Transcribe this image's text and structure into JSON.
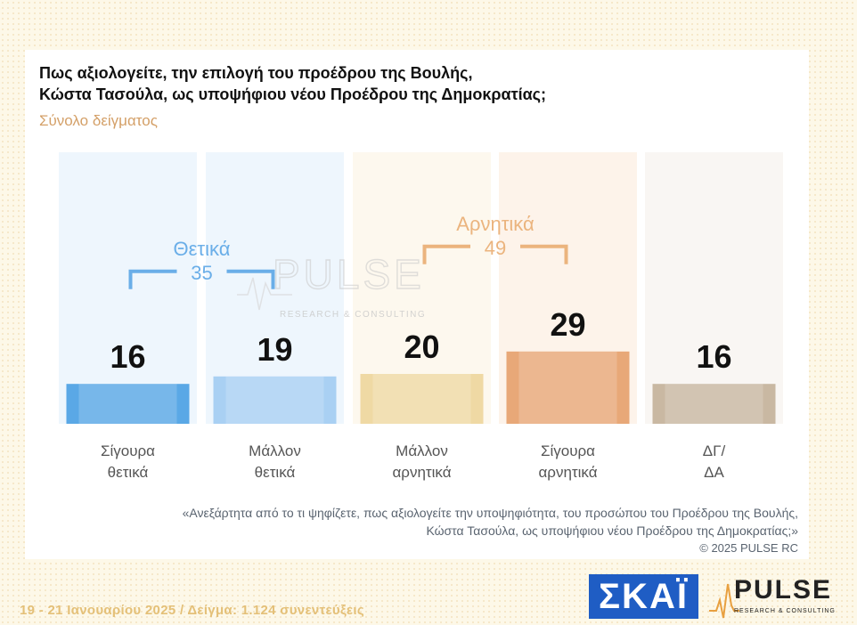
{
  "question": {
    "line1": "Πως αξιολογείτε, την επιλογή του προέδρου της Βουλής,",
    "line2": "Κώστα Τασούλα, ως υποψήφιου νέου Προέδρου της Δημοκρατίας;"
  },
  "subtitle": "Σύνολο δείγματος",
  "watermark": {
    "word": "PULSE",
    "sub": "RESEARCH & CONSULTING"
  },
  "chart_data": {
    "type": "bar",
    "categories": [
      [
        "Σίγουρα",
        "θετικά"
      ],
      [
        "Μάλλον",
        "θετικά"
      ],
      [
        "Μάλλον",
        "αρνητικά"
      ],
      [
        "Σίγουρα",
        "αρνητικά"
      ],
      [
        "ΔΓ/",
        "ΔΑ"
      ]
    ],
    "values": [
      16,
      19,
      20,
      29,
      16
    ],
    "colors": [
      "#5aa8e6",
      "#a9d0f3",
      "#efd9a4",
      "#e8a878",
      "#c9b8a2"
    ],
    "backgrounds": [
      "#eef6fd",
      "#eef6fd",
      "#fdf8ee",
      "#fdf3ea",
      "#f9f6f3"
    ],
    "groups": [
      {
        "label": "Θετικά",
        "value": "35",
        "color": "#6aaee8",
        "from": 0,
        "to": 1
      },
      {
        "label": "Αρνητικά",
        "value": "49",
        "color": "#ebb47e",
        "from": 2,
        "to": 3
      }
    ]
  },
  "footnote": {
    "line1": "«Ανεξάρτητα από το τι ψηφίζετε, πως αξιολογείτε την υποψηφιότητα, του προσώπου του Προέδρου της Βουλής,",
    "line2": "Κώστα Τασούλα, ως υποψήφιου νέου Προέδρου της Δημοκρατίας;»",
    "copyright": "©  2025  PULSE RC"
  },
  "fieldwork": "19 - 21 Ιανουαρίου 2025  /  Δείγμα:  1.124 συνεντεύξεις",
  "logos": {
    "skai": "ΣΚΑΪ",
    "pulse": "PULSE",
    "pulse_sub": "RESEARCH & CONSULTING"
  }
}
